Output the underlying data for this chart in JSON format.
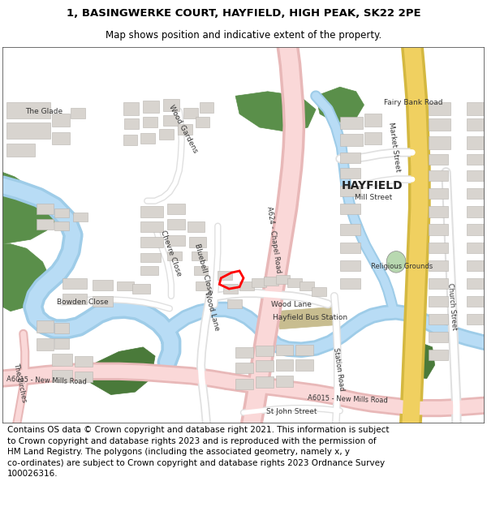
{
  "title_line1": "1, BASINGWERKE COURT, HAYFIELD, HIGH PEAK, SK22 2PE",
  "title_line2": "Map shows position and indicative extent of the property.",
  "copyright_text": "Contains OS data © Crown copyright and database right 2021. This information is subject\nto Crown copyright and database rights 2023 and is reproduced with the permission of\nHM Land Registry. The polygons (including the associated geometry, namely x, y\nco-ordinates) are subject to Crown copyright and database rights 2023 Ordnance Survey\n100026316.",
  "title_fontsize": 9.5,
  "subtitle_fontsize": 8.5,
  "copyright_fontsize": 7.5,
  "map_bg": "#f5f3f0"
}
